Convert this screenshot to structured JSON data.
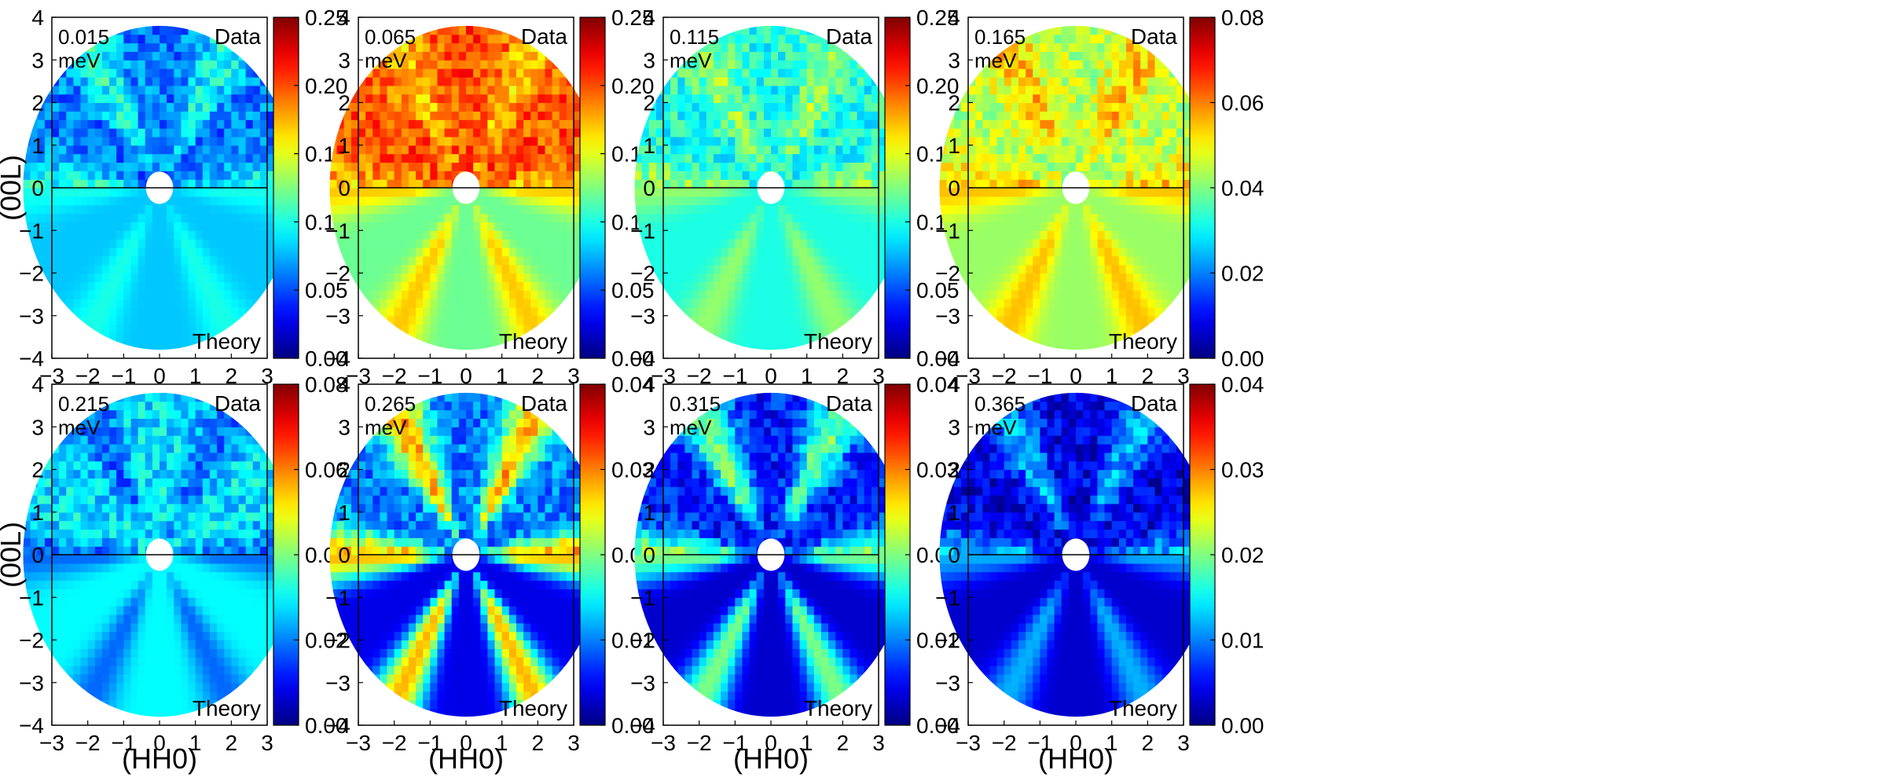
{
  "chart_data": {
    "type": "heatmap",
    "description_grid": "2 rows x 4 columns of polar-masked heatmaps (Data upper half, Theory lower half)",
    "xlabel": "(HH0)",
    "ylabel": "(00L)",
    "xlim": [
      -3,
      3
    ],
    "ylim": [
      -4,
      4
    ],
    "xticks": [
      "−3",
      "−2",
      "−1",
      "0",
      "1",
      "2",
      "3"
    ],
    "yticks": [
      "4",
      "3",
      "2",
      "1",
      "0",
      "−1",
      "−2",
      "−3",
      "−4"
    ],
    "upper_label": "Data",
    "lower_label": "Theory",
    "colormap": "jet",
    "panels": [
      {
        "energy": "0.015",
        "unit": "meV",
        "clim": [
          0,
          0.25
        ],
        "cticks": [
          "0.25",
          "0.20",
          "0.15",
          "0.10",
          "0.05",
          "0.00"
        ],
        "data_level": 0.06,
        "theory_level": 0.08,
        "theory_ridge": 0.1,
        "bragg": true
      },
      {
        "energy": "0.065",
        "unit": "meV",
        "clim": [
          0,
          0.25
        ],
        "cticks": [
          "0.25",
          "0.20",
          "0.15",
          "0.10",
          "0.05",
          "0.00"
        ],
        "data_level": 0.2,
        "theory_level": 0.12,
        "theory_ridge": 0.17,
        "bragg": true
      },
      {
        "energy": "0.115",
        "unit": "meV",
        "clim": [
          0,
          0.25
        ],
        "cticks": [
          "0.25",
          "0.20",
          "0.15",
          "0.10",
          "0.05",
          "0.00"
        ],
        "data_level": 0.1,
        "theory_level": 0.1,
        "theory_ridge": 0.13,
        "bragg": true
      },
      {
        "energy": "0.165",
        "unit": "meV",
        "clim": [
          0,
          0.08
        ],
        "cticks": [
          "0.08",
          "0.06",
          "0.04",
          "0.02",
          "0.00"
        ],
        "data_level": 0.045,
        "theory_level": 0.042,
        "theory_ridge": 0.055,
        "bragg": false
      },
      {
        "energy": "0.215",
        "unit": "meV",
        "clim": [
          0,
          0.08
        ],
        "cticks": [
          "0.08",
          "0.06",
          "0.04",
          "0.02",
          "0.00"
        ],
        "data_level": 0.028,
        "theory_level": 0.03,
        "theory_ridge": 0.018,
        "bragg": false
      },
      {
        "energy": "0.265",
        "unit": "meV",
        "clim": [
          0,
          0.04
        ],
        "cticks": [
          "0.04",
          "0.03",
          "0.02",
          "0.01",
          "0.00"
        ],
        "data_level": 0.01,
        "theory_level": 0.004,
        "theory_ridge": 0.028,
        "bragg": false
      },
      {
        "energy": "0.315",
        "unit": "meV",
        "clim": [
          0,
          0.04
        ],
        "cticks": [
          "0.04",
          "0.03",
          "0.02",
          "0.01",
          "0.00"
        ],
        "data_level": 0.006,
        "theory_level": 0.003,
        "theory_ridge": 0.02,
        "bragg": false
      },
      {
        "energy": "0.365",
        "unit": "meV",
        "clim": [
          0,
          0.04
        ],
        "cticks": [
          "0.04",
          "0.03",
          "0.02",
          "0.01",
          "0.00"
        ],
        "data_level": 0.004,
        "theory_level": 0.003,
        "theory_ridge": 0.012,
        "bragg": false
      }
    ]
  }
}
